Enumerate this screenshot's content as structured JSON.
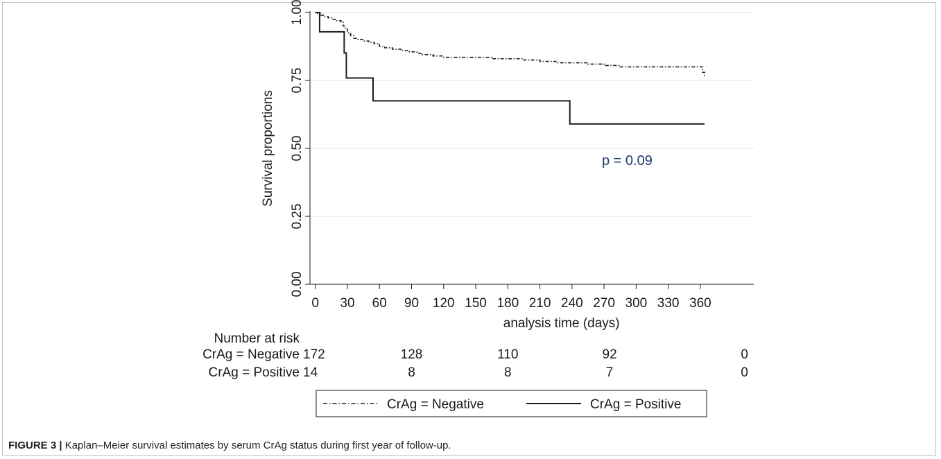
{
  "caption": {
    "label": "FIGURE 3 |",
    "text": " Kaplan–Meier survival estimates by serum CrAg status during first year of follow-up."
  },
  "chart_data": {
    "type": "line",
    "subtype": "kaplan-meier step",
    "title": "",
    "xlabel": "analysis time (days)",
    "ylabel": "Survival proportions",
    "xlim": [
      -5,
      410
    ],
    "ylim": [
      0,
      1.0
    ],
    "xticks": [
      0,
      30,
      60,
      90,
      120,
      150,
      180,
      210,
      240,
      270,
      300,
      330,
      360
    ],
    "yticks": [
      0.0,
      0.25,
      0.5,
      0.75,
      1.0
    ],
    "ytick_labels": [
      "0.00",
      "0.25",
      "0.50",
      "0.75",
      "1.00"
    ],
    "grid": "horizontal",
    "annotation": "p = 0.09",
    "annotation_x": 140,
    "annotation_y": 0.5,
    "series": [
      {
        "name": "CrAg = Negative",
        "style": "dash-dot",
        "color": "#1a1a1a",
        "x": [
          0,
          2,
          5,
          8,
          12,
          16,
          20,
          24,
          26,
          28,
          30,
          33,
          36,
          40,
          45,
          50,
          55,
          60,
          65,
          72,
          80,
          88,
          95,
          100,
          110,
          120,
          135,
          150,
          165,
          180,
          195,
          210,
          225,
          240,
          255,
          270,
          285,
          300,
          320,
          340,
          362,
          364
        ],
        "y": [
          1.0,
          0.997,
          0.99,
          0.985,
          0.98,
          0.975,
          0.97,
          0.965,
          0.95,
          0.94,
          0.925,
          0.915,
          0.905,
          0.9,
          0.895,
          0.89,
          0.885,
          0.875,
          0.87,
          0.865,
          0.86,
          0.855,
          0.85,
          0.845,
          0.84,
          0.835,
          0.835,
          0.835,
          0.83,
          0.83,
          0.825,
          0.82,
          0.815,
          0.815,
          0.81,
          0.805,
          0.8,
          0.8,
          0.8,
          0.8,
          0.78,
          0.76
        ]
      },
      {
        "name": "CrAg = Positive",
        "style": "solid",
        "color": "#1a1a1a",
        "x": [
          0,
          4,
          27,
          29,
          54,
          238,
          364
        ],
        "y": [
          1.0,
          0.929,
          0.851,
          0.759,
          0.675,
          0.59,
          0.59
        ]
      }
    ],
    "risk_table": {
      "header": "Number at risk",
      "times": [
        0,
        90,
        180,
        270,
        360
      ],
      "rows": [
        {
          "label": "CrAg = Negative",
          "counts": [
            "172",
            "128",
            "110",
            "92",
            "0"
          ]
        },
        {
          "label": "CrAg = Positive",
          "counts": [
            "14",
            "8",
            "8",
            "7",
            "0"
          ]
        }
      ]
    },
    "legend": {
      "position": "bottom-center",
      "entries": [
        "CrAg = Negative",
        "CrAg = Positive"
      ]
    }
  }
}
